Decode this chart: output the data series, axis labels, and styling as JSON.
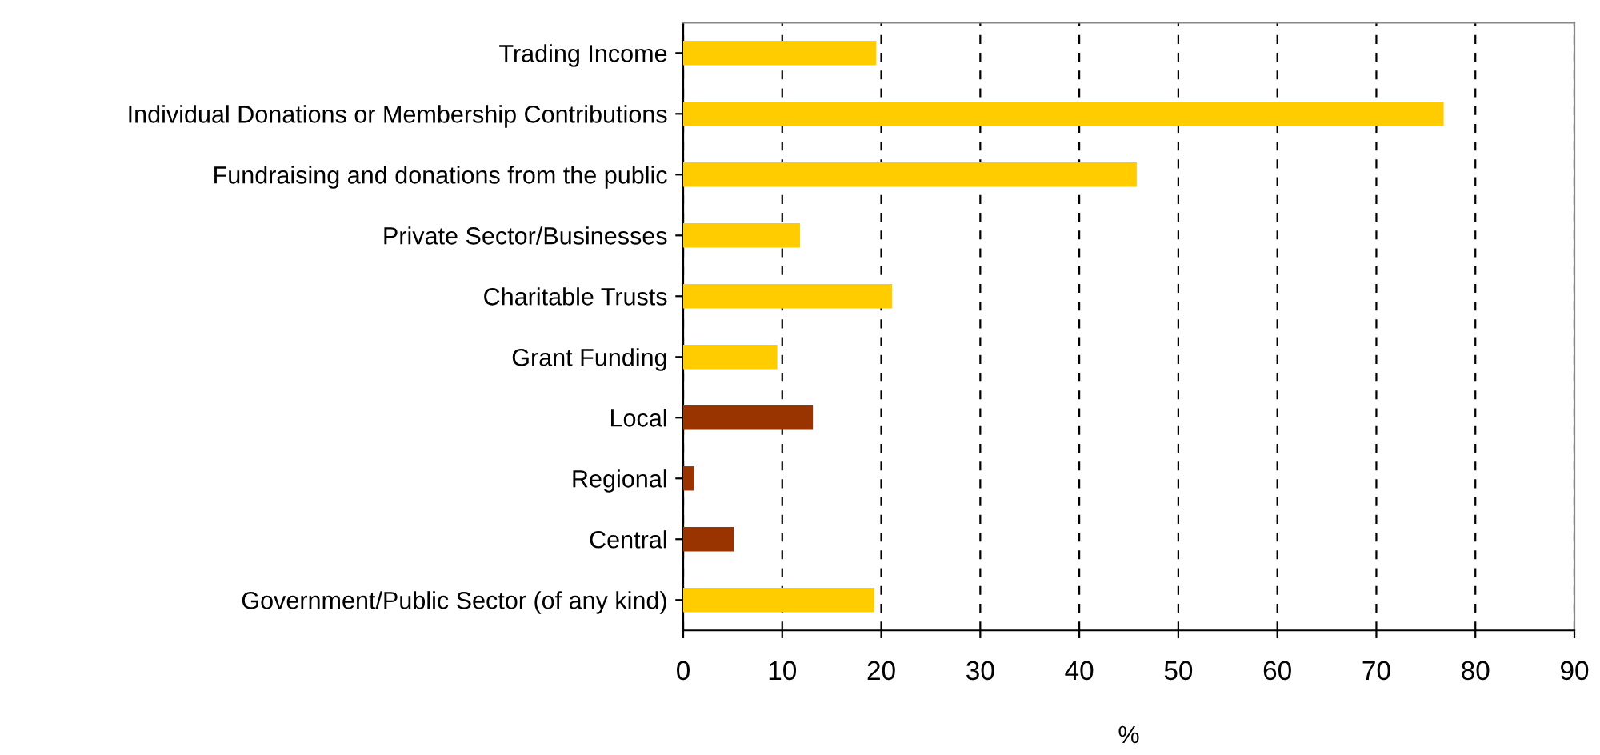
{
  "chart_data": {
    "type": "bar",
    "orientation": "horizontal",
    "xlabel": "%",
    "categories": [
      "Trading Income",
      "Individual Donations or Membership Contributions",
      "Fundraising and donations from the public",
      "Private Sector/Businesses",
      "Charitable Trusts",
      "Grant Funding",
      "Local",
      "Regional",
      "Central",
      "Government/Public Sector (of any kind)"
    ],
    "values": [
      19.5,
      76.8,
      45.8,
      11.8,
      21.1,
      9.5,
      13.1,
      1.1,
      5.1,
      19.3
    ],
    "colors": [
      "#ffcc00",
      "#ffcc00",
      "#ffcc00",
      "#ffcc00",
      "#ffcc00",
      "#ffcc00",
      "#993300",
      "#993300",
      "#993300",
      "#ffcc00"
    ],
    "xlim": [
      0,
      90
    ],
    "xticks": [
      0,
      10,
      20,
      30,
      40,
      50,
      60,
      70,
      80,
      90
    ],
    "grid": "x"
  }
}
